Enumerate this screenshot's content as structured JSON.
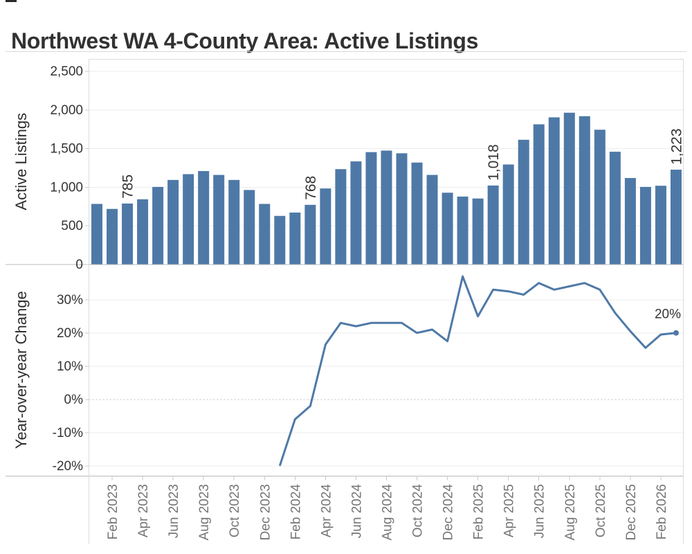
{
  "title": "Northwest WA 4-County Area: Active Listings",
  "colors": {
    "series_blue": "#4e79a7",
    "grid_line": "#ececec",
    "domain_line": "#b9b9b9",
    "spine": "#dcdcdc",
    "tick_mark": "#c9c9c9",
    "zero_dotted": "#c0c0c0",
    "dark_text": "#333333",
    "gray_text": "#757575"
  },
  "x_axis": {
    "tick_labels": [
      "Feb 2023",
      "Apr 2023",
      "Jun 2023",
      "Aug 2023",
      "Oct 2023",
      "Dec 2023",
      "Feb 2024",
      "Apr 2024",
      "Jun 2024",
      "Aug 2024",
      "Oct 2024",
      "Dec 2024",
      "Feb 2025",
      "Apr 2025",
      "Jun 2025",
      "Aug 2025",
      "Oct 2025",
      "Dec 2025",
      "Feb 2026"
    ]
  },
  "chart_data": [
    {
      "type": "bar",
      "title": "Northwest WA 4-County Area: Active Listings",
      "ylabel": "Active Listings",
      "xlabel": "",
      "ylim": [
        0,
        2660
      ],
      "grid": true,
      "y_ticks": [
        0,
        500,
        1000,
        1500,
        2000,
        2500
      ],
      "y_tick_labels": [
        "0",
        "500",
        "1,000",
        "1,500",
        "2,000",
        "2,500"
      ],
      "bar_color": "#4e79a7",
      "categories": [
        "Jan 2023",
        "Feb 2023",
        "Mar 2023",
        "Apr 2023",
        "May 2023",
        "Jun 2023",
        "Jul 2023",
        "Aug 2023",
        "Sep 2023",
        "Oct 2023",
        "Nov 2023",
        "Dec 2023",
        "Jan 2024",
        "Feb 2024",
        "Mar 2024",
        "Apr 2024",
        "May 2024",
        "Jun 2024",
        "Jul 2024",
        "Aug 2024",
        "Sep 2024",
        "Oct 2024",
        "Nov 2024",
        "Dec 2024",
        "Jan 2025",
        "Feb 2025",
        "Mar 2025",
        "Apr 2025",
        "May 2025",
        "Jun 2025",
        "Jul 2025",
        "Aug 2025",
        "Sep 2025",
        "Oct 2025",
        "Nov 2025",
        "Dec 2025",
        "Jan 2026",
        "Feb 2026",
        "Mar 2026"
      ],
      "values": [
        780,
        715,
        785,
        840,
        1000,
        1090,
        1165,
        1205,
        1155,
        1090,
        960,
        780,
        625,
        668,
        768,
        980,
        1230,
        1330,
        1450,
        1470,
        1435,
        1315,
        1155,
        925,
        875,
        850,
        1018,
        1290,
        1610,
        1810,
        1900,
        1960,
        1915,
        1740,
        1455,
        1115,
        1000,
        1015,
        1223
      ],
      "bar_labels": [
        {
          "category": "Mar 2023",
          "label": "785"
        },
        {
          "category": "Mar 2024",
          "label": "768"
        },
        {
          "category": "Mar 2025",
          "label": "1,018"
        },
        {
          "category": "Mar 2026",
          "label": "1,223"
        }
      ]
    },
    {
      "type": "line",
      "ylabel": "Year-over-year Change",
      "xlabel": "",
      "ylim": [
        -23,
        40
      ],
      "grid": true,
      "zero_line_style": "dotted",
      "y_ticks": [
        -20,
        -10,
        0,
        10,
        20,
        30
      ],
      "y_tick_labels": [
        "-20%",
        "-10%",
        "0%",
        "10%",
        "20%",
        "30%"
      ],
      "line_color": "#4e79a7",
      "end_marker": true,
      "x_categories": [
        "Jan 2024",
        "Feb 2024",
        "Mar 2024",
        "Apr 2024",
        "May 2024",
        "Jun 2024",
        "Jul 2024",
        "Aug 2024",
        "Sep 2024",
        "Oct 2024",
        "Nov 2024",
        "Dec 2024",
        "Jan 2025",
        "Feb 2025",
        "Mar 2025",
        "Apr 2025",
        "May 2025",
        "Jun 2025",
        "Jul 2025",
        "Aug 2025",
        "Sep 2025",
        "Oct 2025",
        "Nov 2025",
        "Dec 2025",
        "Jan 2026",
        "Feb 2026",
        "Mar 2026"
      ],
      "values_pct": [
        -20,
        -6,
        -2,
        16.5,
        23,
        22,
        23,
        23,
        23,
        20,
        21,
        17.5,
        37,
        25,
        33,
        32.5,
        31.5,
        35,
        33,
        34,
        35,
        33,
        26,
        20.5,
        15.5,
        19.5,
        20
      ],
      "end_label": {
        "category": "Mar 2026",
        "label": "20%"
      }
    }
  ]
}
